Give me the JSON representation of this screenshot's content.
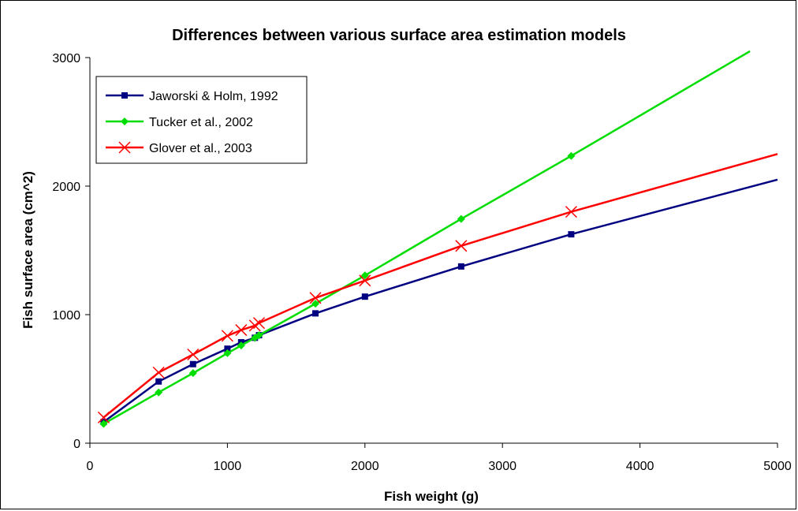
{
  "chart_data": {
    "type": "line",
    "title": "Differences between various surface area  estimation models",
    "xlabel": "Fish weight (g)",
    "ylabel": "Fish surface area (cm^2)",
    "xlim": [
      0,
      5000
    ],
    "ylim": [
      0,
      3000
    ],
    "xticks": [
      "0",
      "1000",
      "2000",
      "3000",
      "4000",
      "5000"
    ],
    "yticks": [
      "0",
      "1000",
      "2000",
      "3000"
    ],
    "grid": false,
    "legend_position": "top-left",
    "series": [
      {
        "name": "Jaworski & Holm, 1992",
        "color": "#000080",
        "marker": "square",
        "x": [
          100,
          500,
          750,
          1000,
          1100,
          1200,
          1230,
          1640,
          2000,
          2700,
          3500
        ],
        "y": [
          165,
          480,
          615,
          735,
          785,
          820,
          840,
          1010,
          1140,
          1375,
          1625
        ],
        "line_end": [
          5000,
          2050
        ]
      },
      {
        "name": "Tucker et al., 2002",
        "color": "#00dd00",
        "marker": "diamond",
        "x": [
          100,
          500,
          750,
          1000,
          1100,
          1200,
          1230,
          1640,
          2000,
          2700,
          3500
        ],
        "y": [
          150,
          395,
          545,
          700,
          760,
          820,
          840,
          1085,
          1305,
          1745,
          2235
        ],
        "line_end": [
          4800,
          3050
        ]
      },
      {
        "name": "Glover et al., 2003",
        "color": "#ff0000",
        "marker": "x",
        "x": [
          100,
          500,
          750,
          1000,
          1100,
          1200,
          1230,
          1640,
          2000,
          2700,
          3500
        ],
        "y": [
          200,
          550,
          690,
          835,
          880,
          915,
          935,
          1130,
          1265,
          1535,
          1800
        ],
        "line_end": [
          5000,
          2250
        ]
      }
    ]
  }
}
